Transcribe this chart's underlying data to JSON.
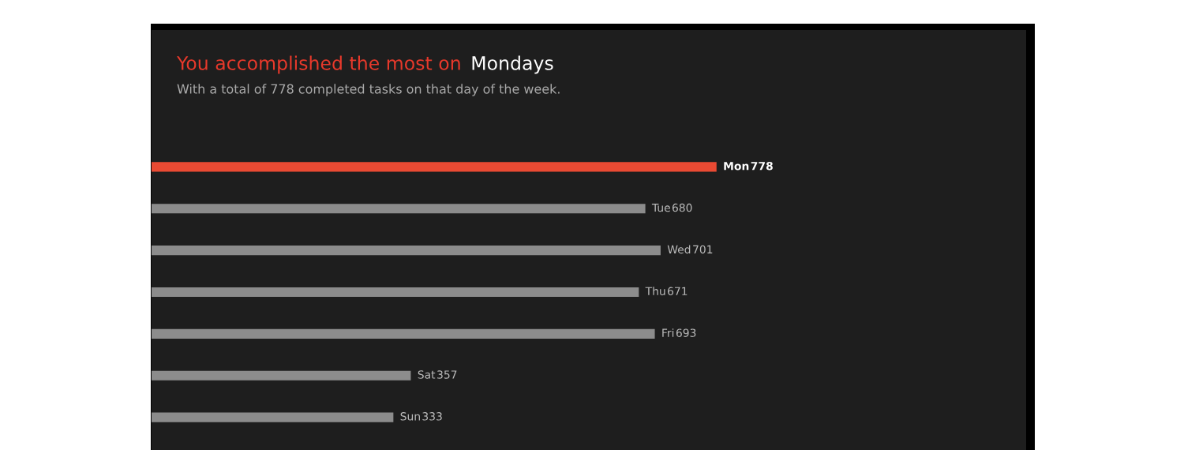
{
  "chart_data": {
    "type": "bar",
    "orientation": "horizontal",
    "title": "You accomplished the most on Mondays",
    "subtitle": "With a total of 778 completed tasks on that day of the week.",
    "categories": [
      "Mon",
      "Tue",
      "Wed",
      "Thu",
      "Fri",
      "Sat",
      "Sun"
    ],
    "values": [
      778,
      680,
      701,
      671,
      693,
      357,
      333
    ],
    "colors": [
      "#ea4a33",
      "#8c8c8c",
      "#8c8c8c",
      "#8c8c8c",
      "#8c8c8c",
      "#8c8c8c",
      "#8c8c8c"
    ],
    "data_labels": true,
    "tick_labels": false
  }
}
